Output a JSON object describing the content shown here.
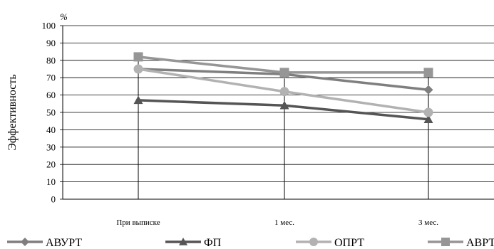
{
  "chart_data": {
    "type": "line",
    "title": "",
    "xlabel": "",
    "ylabel": "Эффективность",
    "y_unit": "%",
    "ylim": [
      0,
      100
    ],
    "ytick_step": 10,
    "yticks": [
      "0",
      "10",
      "20",
      "30",
      "40",
      "50",
      "60",
      "70",
      "80",
      "90",
      "100"
    ],
    "grid": true,
    "legend_position": "bottom",
    "categories": [
      "При выписке",
      "1 мес.",
      "3 мес."
    ],
    "series": [
      {
        "name": "АВУРТ",
        "marker": "diamond",
        "color": "#7f7f7f",
        "values": [
          75,
          72,
          63
        ]
      },
      {
        "name": "ФП",
        "marker": "triangle",
        "color": "#555555",
        "values": [
          57,
          54,
          46
        ]
      },
      {
        "name": "ОПРТ",
        "marker": "circle",
        "color": "#b2b2b2",
        "values": [
          75,
          62,
          50
        ]
      },
      {
        "name": "АВРТ",
        "marker": "square",
        "color": "#969696",
        "values": [
          82,
          73,
          73
        ]
      }
    ]
  }
}
